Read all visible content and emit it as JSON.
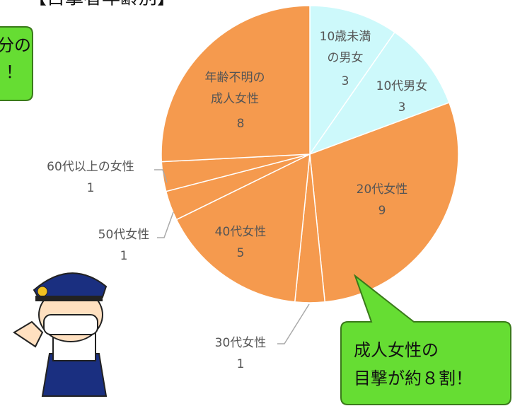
{
  "chart_data": {
    "type": "pie",
    "title": "【目撃者年齢別】",
    "categories": [
      "10歳未満\nの男女",
      "10代男女",
      "20代女性",
      "30代女性",
      "40代女性",
      "50代女性",
      "60代以上の女性",
      "年齢不明の\n成人女性"
    ],
    "values": [
      3,
      3,
      9,
      1,
      5,
      1,
      1,
      8
    ],
    "colors": [
      "#cdf9fb",
      "#cdf9fb",
      "#f59a4e",
      "#f59a4e",
      "#f59a4e",
      "#f59a4e",
      "#f59a4e",
      "#f59a4e"
    ],
    "annotations": [
      "分の\n！",
      "成人女性の\n目撃が約８割！"
    ]
  }
}
